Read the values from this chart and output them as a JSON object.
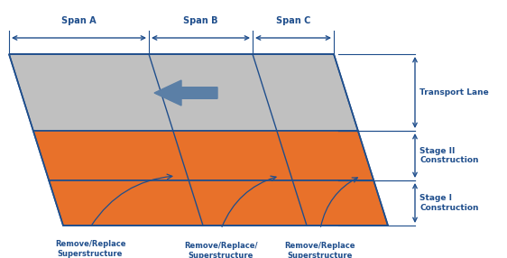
{
  "blue": "#1F4E8C",
  "orange": "#E8712A",
  "gray": "#C0C0C0",
  "arrow_color": "#5B7FA6",
  "bg": "#FFFFFF",
  "span_labels": [
    "Span A",
    "Span B",
    "Span C"
  ],
  "right_labels": [
    "Transport Lane",
    "Stage II\nConstruction",
    "Stage I\nConstruction"
  ],
  "bottom_labels": [
    "Remove/Replace\nSuperstructure",
    "Remove/Replace/\nSuperstructure",
    "Remove/Replace\nSuperstructure"
  ]
}
